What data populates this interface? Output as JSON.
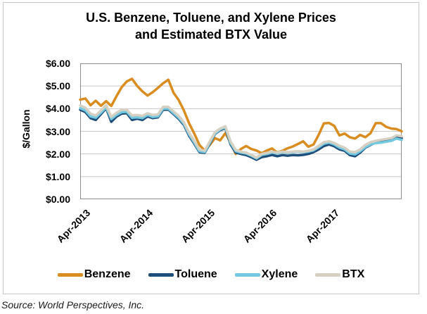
{
  "title": {
    "line1": "U.S. Benzene, Toluene, and Xylene Prices",
    "line2": "and Estimated BTX Value"
  },
  "source": "Source: World Perspectives, Inc.",
  "colors": {
    "benzene": "#D98C20",
    "toluene": "#1E4E79",
    "xylene": "#74C9E0",
    "btx": "#D6D0C3",
    "gridline": "#C8C8C8",
    "plot_border": "#8C8C8C",
    "frame_border": "#C9C9C9"
  },
  "chart_data": {
    "type": "line",
    "title": "U.S. Benzene, Toluene, and Xylene Prices and Estimated BTX Value",
    "xlabel": "",
    "ylabel": "$/Gallon",
    "ylim": [
      0,
      6
    ],
    "grid": true,
    "legend_position": "bottom",
    "x_unit": "months since Apr-2013 (monthly estimates read from weekly curve)",
    "xlim_months": [
      0,
      62
    ],
    "y_ticks": [
      {
        "value": 6,
        "label": "$6.00"
      },
      {
        "value": 5,
        "label": "$5.00"
      },
      {
        "value": 4,
        "label": "$4.00"
      },
      {
        "value": 3,
        "label": "$3.00"
      },
      {
        "value": 2,
        "label": "$2.00"
      },
      {
        "value": 1,
        "label": "$1.00"
      },
      {
        "value": 0,
        "label": "$0.00"
      }
    ],
    "x_ticks": [
      {
        "month": 0,
        "label": "Apr-2013"
      },
      {
        "month": 12,
        "label": "Apr-2014"
      },
      {
        "month": 24,
        "label": "Apr-2015"
      },
      {
        "month": 36,
        "label": "Apr-2016"
      },
      {
        "month": 48,
        "label": "Apr-2017"
      }
    ],
    "series": [
      {
        "name": "Benzene",
        "color": "#D98C20",
        "values": [
          4.4,
          4.45,
          4.15,
          4.35,
          4.13,
          4.33,
          4.12,
          4.55,
          4.95,
          5.2,
          5.32,
          5.0,
          4.76,
          4.58,
          4.73,
          4.92,
          5.12,
          5.28,
          4.7,
          4.38,
          3.92,
          3.35,
          2.9,
          2.4,
          2.15,
          2.4,
          2.7,
          2.6,
          2.92,
          2.5,
          2.0,
          2.22,
          2.35,
          2.22,
          2.15,
          2.03,
          2.15,
          2.24,
          2.06,
          2.14,
          2.25,
          2.33,
          2.44,
          2.56,
          2.32,
          2.42,
          2.85,
          3.35,
          3.37,
          3.24,
          2.82,
          2.9,
          2.74,
          2.68,
          2.84,
          2.74,
          2.92,
          3.36,
          3.36,
          3.2,
          3.12,
          3.1,
          3.0
        ]
      },
      {
        "name": "Toluene",
        "color": "#1E4E79",
        "values": [
          3.95,
          3.85,
          3.58,
          3.5,
          3.76,
          4.02,
          3.42,
          3.65,
          3.78,
          3.8,
          3.5,
          3.56,
          3.5,
          3.66,
          3.58,
          3.62,
          3.95,
          3.96,
          3.76,
          3.55,
          3.28,
          2.8,
          2.45,
          2.08,
          2.05,
          2.46,
          2.88,
          3.05,
          3.14,
          2.42,
          2.06,
          2.0,
          1.95,
          1.86,
          1.74,
          1.86,
          1.9,
          1.96,
          1.9,
          1.95,
          1.92,
          1.95,
          1.94,
          1.96,
          2.0,
          2.08,
          2.2,
          2.35,
          2.42,
          2.34,
          2.2,
          2.14,
          1.95,
          1.9,
          2.06,
          2.28,
          2.4,
          2.5,
          2.55,
          2.6,
          2.65,
          2.76,
          2.7
        ]
      },
      {
        "name": "Xylene",
        "color": "#74C9E0",
        "values": [
          4.02,
          3.92,
          3.66,
          3.6,
          3.82,
          4.06,
          3.54,
          3.72,
          3.85,
          3.86,
          3.6,
          3.62,
          3.58,
          3.72,
          3.63,
          3.66,
          4.0,
          4.0,
          3.8,
          3.6,
          3.33,
          2.86,
          2.5,
          2.12,
          2.08,
          2.5,
          2.9,
          3.08,
          3.18,
          2.48,
          2.12,
          2.06,
          2.02,
          1.92,
          1.8,
          1.96,
          2.0,
          2.06,
          2.02,
          2.08,
          2.05,
          2.08,
          2.1,
          2.08,
          2.1,
          2.16,
          2.3,
          2.45,
          2.5,
          2.42,
          2.28,
          2.2,
          2.02,
          1.98,
          2.12,
          2.3,
          2.42,
          2.48,
          2.5,
          2.54,
          2.58,
          2.68,
          2.62
        ]
      },
      {
        "name": "BTX",
        "color": "#D6D0C3",
        "values": [
          4.14,
          4.04,
          3.78,
          3.7,
          3.92,
          4.15,
          3.64,
          3.82,
          3.95,
          3.95,
          3.7,
          3.72,
          3.68,
          3.8,
          3.72,
          3.75,
          4.08,
          4.08,
          3.88,
          3.68,
          3.4,
          2.94,
          2.58,
          2.2,
          2.14,
          2.56,
          2.96,
          3.12,
          3.22,
          2.55,
          2.18,
          2.1,
          2.06,
          1.96,
          1.84,
          2.0,
          2.05,
          2.1,
          2.06,
          2.1,
          2.08,
          2.1,
          2.12,
          2.1,
          2.14,
          2.2,
          2.36,
          2.52,
          2.56,
          2.48,
          2.36,
          2.28,
          2.1,
          2.08,
          2.2,
          2.4,
          2.52,
          2.58,
          2.62,
          2.66,
          2.7,
          2.82,
          2.78
        ]
      }
    ]
  }
}
